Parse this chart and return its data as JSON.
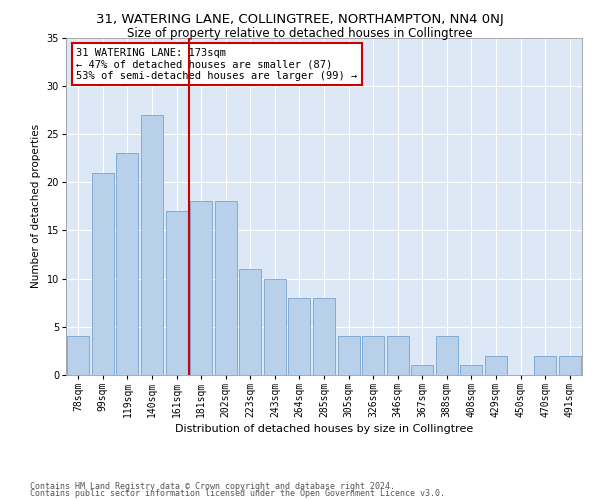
{
  "title1": "31, WATERING LANE, COLLINGTREE, NORTHAMPTON, NN4 0NJ",
  "title2": "Size of property relative to detached houses in Collingtree",
  "xlabel": "Distribution of detached houses by size in Collingtree",
  "ylabel": "Number of detached properties",
  "categories": [
    "78sqm",
    "99sqm",
    "119sqm",
    "140sqm",
    "161sqm",
    "181sqm",
    "202sqm",
    "223sqm",
    "243sqm",
    "264sqm",
    "285sqm",
    "305sqm",
    "326sqm",
    "346sqm",
    "367sqm",
    "388sqm",
    "408sqm",
    "429sqm",
    "450sqm",
    "470sqm",
    "491sqm"
  ],
  "values": [
    4,
    21,
    23,
    27,
    17,
    18,
    18,
    11,
    10,
    8,
    8,
    4,
    4,
    4,
    1,
    4,
    1,
    2,
    0,
    2,
    2
  ],
  "bar_color": "#b8d0ea",
  "bar_edgecolor": "#6699cc",
  "vline_x": 4.5,
  "vline_color": "#cc0000",
  "annotation_title": "31 WATERING LANE: 173sqm",
  "annotation_line1": "← 47% of detached houses are smaller (87)",
  "annotation_line2": "53% of semi-detached houses are larger (99) →",
  "annotation_box_facecolor": "#ffffff",
  "annotation_box_edgecolor": "#cc0000",
  "ylim": [
    0,
    35
  ],
  "yticks": [
    0,
    5,
    10,
    15,
    20,
    25,
    30,
    35
  ],
  "background_color": "#dce8f5",
  "grid_color": "#ffffff",
  "footer1": "Contains HM Land Registry data © Crown copyright and database right 2024.",
  "footer2": "Contains public sector information licensed under the Open Government Licence v3.0.",
  "title1_fontsize": 9.5,
  "title2_fontsize": 8.5,
  "xlabel_fontsize": 8,
  "ylabel_fontsize": 7.5,
  "tick_fontsize": 7,
  "annotation_fontsize": 7.5,
  "footer_fontsize": 6
}
